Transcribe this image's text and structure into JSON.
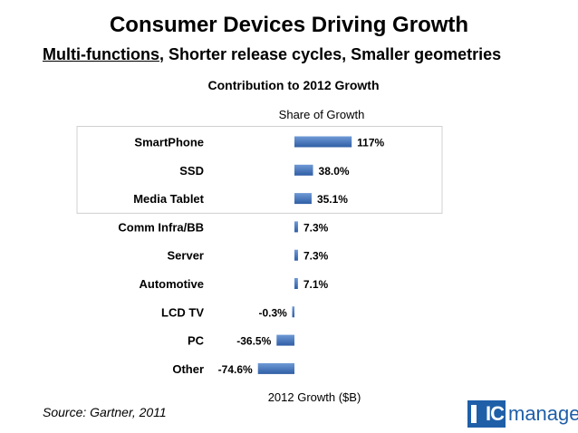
{
  "slide": {
    "title": "Consumer Devices Driving Growth",
    "subtitle_underlined": "Multi-functions",
    "subtitle_rest": ", Shorter release cycles, Smaller geometries",
    "source": "Source: Gartner, 2011",
    "logo": {
      "ic": "IC",
      "manage": "manage"
    }
  },
  "chart_data": {
    "type": "bar",
    "orientation": "horizontal",
    "title": "Contribution to 2012 Growth",
    "top_label": "Share of Growth",
    "xlabel": "2012 Growth ($B)",
    "categories": [
      "SmartPhone",
      "SSD",
      "Media Tablet",
      "Comm Infra/BB",
      "Server",
      "Automotive",
      "LCD TV",
      "PC",
      "Other"
    ],
    "values": [
      117,
      38.0,
      35.1,
      7.3,
      7.3,
      7.1,
      -0.3,
      -36.5,
      -74.6
    ],
    "data_labels": [
      "117%",
      "38.0%",
      "35.1%",
      "7.3%",
      "7.3%",
      "7.1%",
      "-0.3%",
      "-36.5%",
      "-74.6%"
    ],
    "highlighted_categories": [
      "SmartPhone",
      "SSD",
      "Media Tablet"
    ],
    "grid": false,
    "colors": {
      "bar": "#3f6fb3",
      "bar_light": "#6f9ad6",
      "highlight_border": "#d0d0d0"
    }
  }
}
